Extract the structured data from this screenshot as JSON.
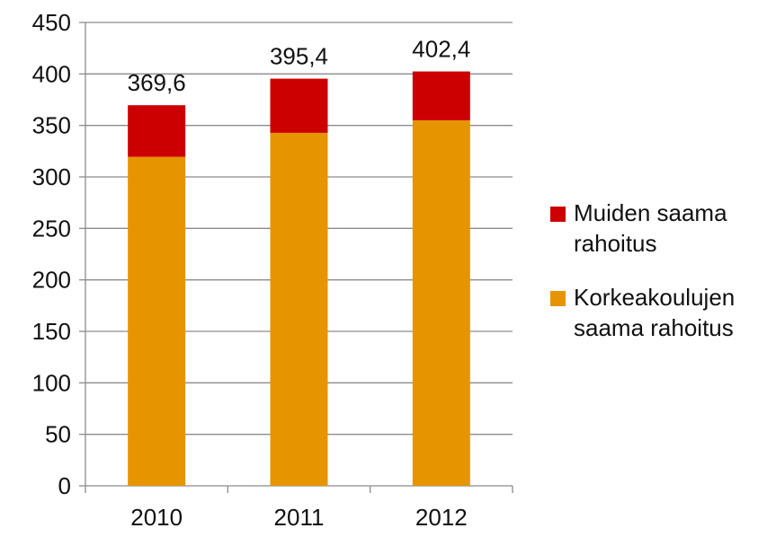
{
  "chart_data": {
    "type": "bar",
    "stacked": true,
    "categories": [
      "2010",
      "2011",
      "2012"
    ],
    "series": [
      {
        "name": "Korkeakoulujen saama rahoitus",
        "color": "#e69500",
        "values": [
          319.5,
          342.8,
          355.0
        ]
      },
      {
        "name": "Muiden saama rahoitus",
        "color": "#cc0000",
        "values": [
          50.1,
          52.6,
          47.4
        ]
      }
    ],
    "totals": [
      "369,6",
      "395,4",
      "402,4"
    ],
    "title": "",
    "xlabel": "",
    "ylabel": "",
    "ylim": [
      0,
      450
    ],
    "yticks": [
      0,
      50,
      100,
      150,
      200,
      250,
      300,
      350,
      400,
      450
    ],
    "grid": true,
    "legend_position": "right"
  },
  "legend": {
    "items": [
      {
        "label_line1": "Muiden saama",
        "label_line2": "rahoitus",
        "color": "#cc0000"
      },
      {
        "label_line1": "Korkeakoulujen",
        "label_line2": "saama rahoitus",
        "color": "#e69500"
      }
    ]
  }
}
